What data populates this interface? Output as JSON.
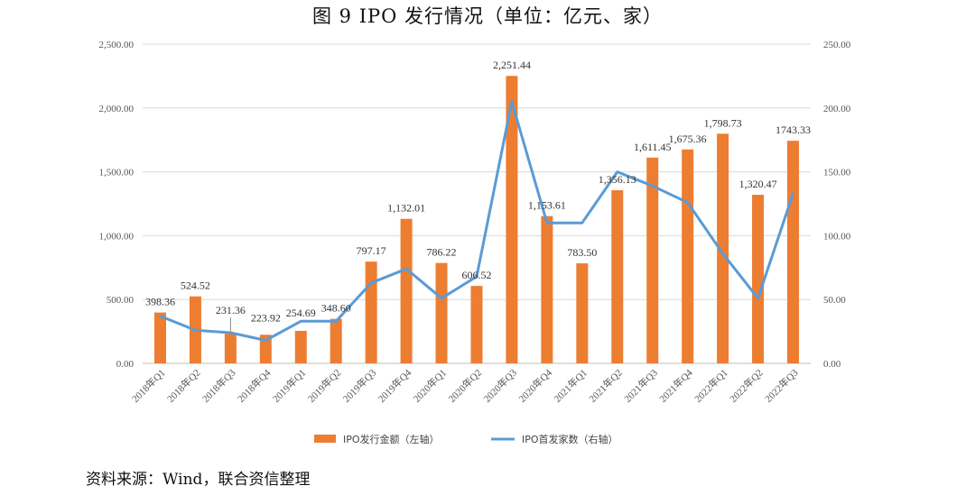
{
  "title": "图 9   IPO 发行情况（单位：亿元、家）",
  "source": "资料来源：Wind，联合资信整理",
  "colors": {
    "bar": "#ED7D31",
    "line": "#5B9BD5",
    "grid": "#D9D9D9",
    "axis": "#BFBFBF"
  },
  "chart_data": {
    "type": "bar",
    "categories": [
      "2018年Q1",
      "2018年Q2",
      "2018年Q3",
      "2018年Q4",
      "2019年Q1",
      "2019年Q2",
      "2019年Q3",
      "2019年Q4",
      "2020年Q1",
      "2020年Q2",
      "2020年Q3",
      "2020年Q4",
      "2021年Q1",
      "2021年Q2",
      "2021年Q3",
      "2021年Q4",
      "2022年Q1",
      "2022年Q2",
      "2022年Q3"
    ],
    "series": [
      {
        "name": "IPO发行金额（左轴）",
        "type": "bar",
        "axis": "left",
        "values": [
          398.36,
          524.52,
          231.36,
          223.92,
          254.69,
          348.6,
          797.17,
          1132.01,
          786.22,
          606.52,
          2251.44,
          1153.61,
          783.5,
          1356.13,
          1611.45,
          1675.36,
          1798.73,
          1320.47,
          1743.33
        ],
        "labels": [
          "398.36",
          "524.52",
          "231.36",
          "223.92",
          "254.69",
          "348.60",
          "797.17",
          "1,132.01",
          "786.22",
          "606.52",
          "2,251.44",
          "1,153.61",
          "783.50",
          "1,356.13",
          "1,611.45",
          "1,675.36",
          "1,798.73",
          "1,320.47",
          "1743.33"
        ]
      },
      {
        "name": "IPO首发家数（右轴）",
        "type": "line",
        "axis": "right",
        "values": [
          37,
          26,
          24,
          18,
          33,
          33,
          63,
          74,
          51,
          68,
          205,
          110,
          110,
          150,
          139,
          126,
          86,
          51,
          133
        ]
      }
    ],
    "y_left": {
      "ylim": [
        0,
        2500
      ],
      "ticks": [
        "0.00",
        "500.00",
        "1,000.00",
        "1,500.00",
        "2,000.00",
        "2,500.00"
      ]
    },
    "y_right": {
      "ylim": [
        0,
        250
      ],
      "ticks": [
        "0.00",
        "50.00",
        "100.00",
        "150.00",
        "200.00",
        "250.00"
      ]
    },
    "legend_position": "bottom-center",
    "grid": true
  }
}
